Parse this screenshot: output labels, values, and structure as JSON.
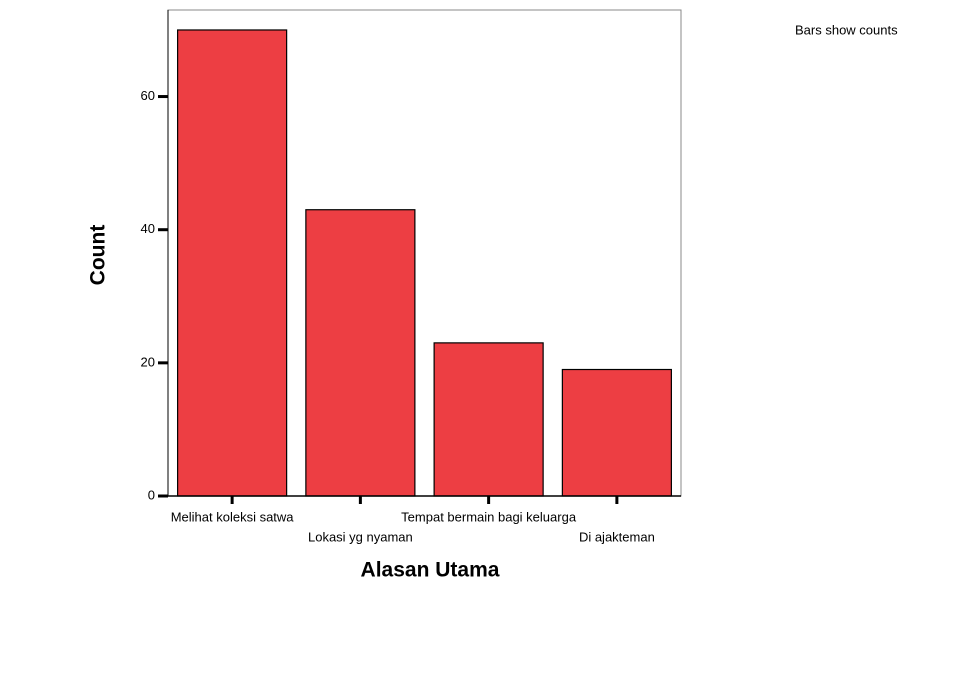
{
  "chart_data": {
    "type": "bar",
    "x_label": "Alasan Utama",
    "y_label": "Count",
    "annotation": "Bars show counts",
    "categories": [
      "Melihat koleksi satwa",
      "Lokasi yg nyaman",
      "Tempat bermain bagi keluarga",
      "Di ajakteman"
    ],
    "values": [
      70,
      43,
      23,
      19
    ],
    "color": "#ec3439",
    "ylim": [
      0,
      73
    ],
    "yticks": [
      0,
      20,
      40,
      60
    ],
    "grid": false
  }
}
